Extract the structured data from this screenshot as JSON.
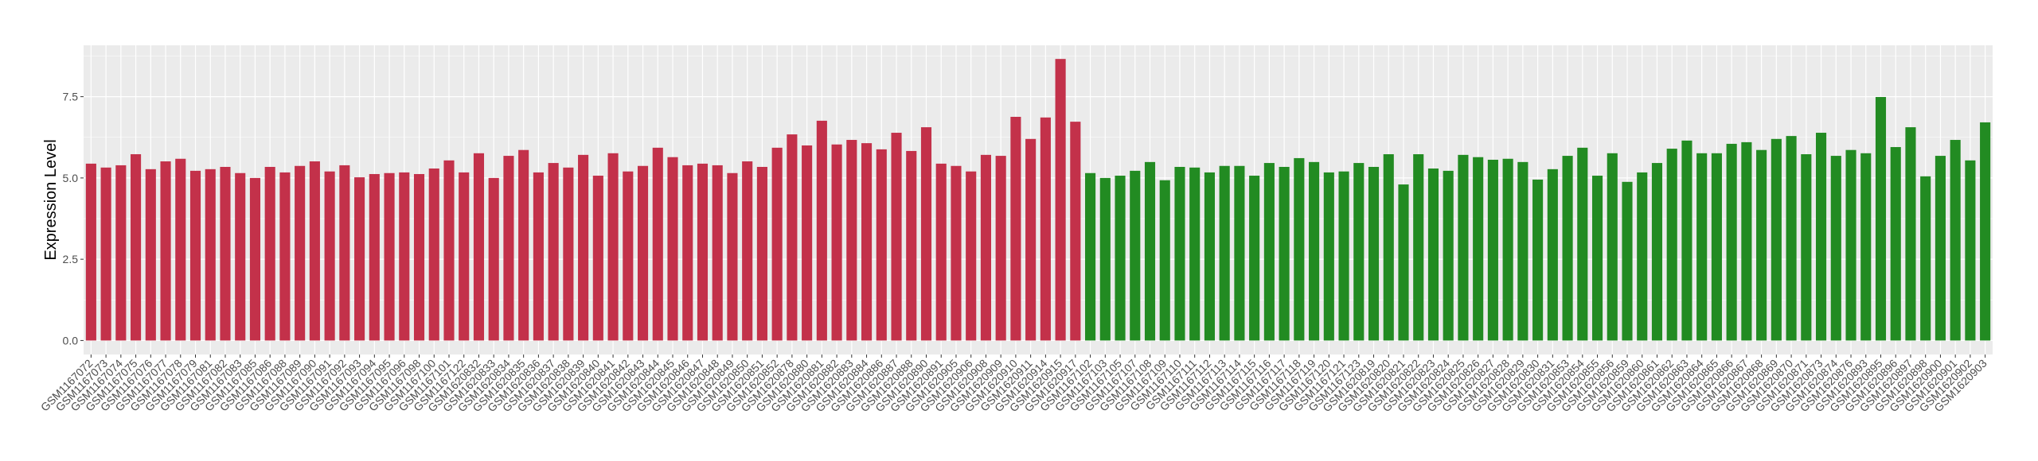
{
  "chart_data": {
    "type": "bar",
    "title": "",
    "xlabel": "",
    "ylabel": "Expression Level",
    "ylim": [
      -0.43,
      9.08
    ],
    "yticks": [
      0.0,
      2.5,
      5.0,
      7.5
    ],
    "ytick_labels": [
      "0.0",
      "2.5",
      "5.0",
      "7.5"
    ],
    "grid": true,
    "legend": "none",
    "colors": {
      "group1": "#C3314A",
      "group2": "#228B22",
      "panel": "#EBEBEB",
      "grid": "#FFFFFF"
    },
    "categories": [
      "GSM1167072",
      "GSM1167073",
      "GSM1167074",
      "GSM1167075",
      "GSM1167076",
      "GSM1167077",
      "GSM1167078",
      "GSM1167079",
      "GSM1167081",
      "GSM1167082",
      "GSM1167083",
      "GSM1167085",
      "GSM1167086",
      "GSM1167088",
      "GSM1167089",
      "GSM1167090",
      "GSM1167091",
      "GSM1167092",
      "GSM1167093",
      "GSM1167094",
      "GSM1167095",
      "GSM1167096",
      "GSM1167098",
      "GSM1167100",
      "GSM1167101",
      "GSM1167122",
      "GSM1620832",
      "GSM1620833",
      "GSM1620834",
      "GSM1620835",
      "GSM1620836",
      "GSM1620837",
      "GSM1620838",
      "GSM1620839",
      "GSM1620840",
      "GSM1620841",
      "GSM1620842",
      "GSM1620843",
      "GSM1620844",
      "GSM1620845",
      "GSM1620846",
      "GSM1620847",
      "GSM1620848",
      "GSM1620849",
      "GSM1620850",
      "GSM1620851",
      "GSM1620852",
      "GSM1620878",
      "GSM1620880",
      "GSM1620881",
      "GSM1620882",
      "GSM1620883",
      "GSM1620884",
      "GSM1620886",
      "GSM1620887",
      "GSM1620888",
      "GSM1620890",
      "GSM1620891",
      "GSM1620905",
      "GSM1620906",
      "GSM1620908",
      "GSM1620909",
      "GSM1620910",
      "GSM1620911",
      "GSM1620914",
      "GSM1620915",
      "GSM1620917",
      "GSM1167102",
      "GSM1167103",
      "GSM1167105",
      "GSM1167107",
      "GSM1167108",
      "GSM1167109",
      "GSM1167110",
      "GSM1167111",
      "GSM1167112",
      "GSM1167113",
      "GSM1167114",
      "GSM1167115",
      "GSM1167116",
      "GSM1167117",
      "GSM1167118",
      "GSM1167119",
      "GSM1167120",
      "GSM1167121",
      "GSM1167123",
      "GSM1620819",
      "GSM1620820",
      "GSM1620821",
      "GSM1620822",
      "GSM1620823",
      "GSM1620824",
      "GSM1620825",
      "GSM1620826",
      "GSM1620827",
      "GSM1620828",
      "GSM1620829",
      "GSM1620830",
      "GSM1620831",
      "GSM1620853",
      "GSM1620854",
      "GSM1620855",
      "GSM1620856",
      "GSM1620859",
      "GSM1620860",
      "GSM1620861",
      "GSM1620862",
      "GSM1620863",
      "GSM1620864",
      "GSM1620865",
      "GSM1620866",
      "GSM1620867",
      "GSM1620868",
      "GSM1620869",
      "GSM1620870",
      "GSM1620871",
      "GSM1620873",
      "GSM1620874",
      "GSM1620876",
      "GSM1620893",
      "GSM1620895",
      "GSM1620896",
      "GSM1620897",
      "GSM1620898",
      "GSM1620900",
      "GSM1620901",
      "GSM1620902",
      "GSM1620903"
    ],
    "values": [
      5.44,
      5.32,
      5.39,
      5.73,
      5.27,
      5.51,
      5.59,
      5.22,
      5.27,
      5.34,
      5.15,
      5.0,
      5.34,
      5.17,
      5.37,
      5.51,
      5.2,
      5.39,
      5.02,
      5.12,
      5.15,
      5.17,
      5.12,
      5.29,
      5.54,
      5.17,
      5.76,
      5.0,
      5.68,
      5.86,
      5.17,
      5.46,
      5.32,
      5.71,
      5.07,
      5.76,
      5.2,
      5.37,
      5.93,
      5.64,
      5.39,
      5.44,
      5.39,
      5.15,
      5.51,
      5.34,
      5.93,
      6.34,
      6.0,
      6.76,
      6.03,
      6.17,
      6.07,
      5.88,
      6.39,
      5.83,
      6.56,
      5.44,
      5.37,
      5.2,
      5.71,
      5.68,
      6.88,
      6.2,
      6.86,
      8.66,
      6.73,
      5.15,
      5.0,
      5.07,
      5.22,
      5.49,
      4.93,
      5.34,
      5.32,
      5.17,
      5.37,
      5.37,
      5.07,
      5.46,
      5.34,
      5.61,
      5.49,
      5.17,
      5.2,
      5.46,
      5.34,
      5.73,
      4.8,
      5.73,
      5.29,
      5.22,
      5.71,
      5.64,
      5.56,
      5.59,
      5.49,
      4.95,
      5.27,
      5.68,
      5.93,
      5.07,
      5.76,
      4.88,
      5.17,
      5.46,
      5.9,
      6.15,
      5.76,
      5.76,
      6.05,
      6.1,
      5.86,
      6.2,
      6.29,
      5.73,
      6.39,
      5.68,
      5.86,
      5.76,
      7.49,
      5.95,
      6.56,
      5.05,
      5.68,
      6.17,
      5.54,
      6.71
    ],
    "groups_count": {
      "group1": 67,
      "group2": 61
    }
  }
}
